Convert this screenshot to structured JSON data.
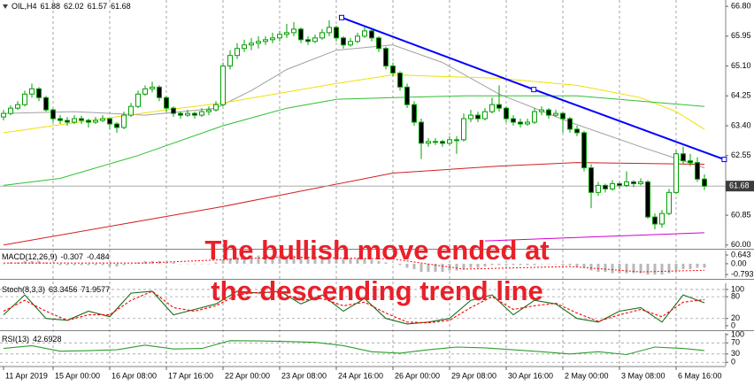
{
  "chart_data": [
    {
      "type": "candlestick",
      "title": "OIL,H4",
      "header_values": [
        61.88,
        62.02,
        61.57,
        61.68
      ],
      "categories": [
        "11 Apr 2019",
        null,
        null,
        null,
        null,
        null,
        null,
        "15 Apr 00:00",
        null,
        null,
        null,
        null,
        null,
        null,
        null,
        "16 Apr 08:00",
        null,
        null,
        null,
        null,
        null,
        null,
        null,
        "17 Apr 16:00",
        null,
        null,
        null,
        null,
        null,
        null,
        null,
        "22 Apr 00:00",
        null,
        null,
        null,
        null,
        null,
        null,
        null,
        "23 Apr 08:00",
        null,
        null,
        null,
        null,
        null,
        null,
        null,
        "24 Apr 16:00",
        null,
        null,
        null,
        null,
        null,
        null,
        null,
        "26 Apr 00:00",
        null,
        null,
        null,
        null,
        null,
        null,
        null,
        "29 Apr 08:00",
        null,
        null,
        null,
        null,
        null,
        null,
        null,
        "30 Apr 16:00",
        null,
        null,
        null,
        null,
        null,
        null,
        null,
        "2 May 00:00",
        null,
        null,
        null,
        null,
        null,
        null,
        null,
        "3 May 08:00",
        null,
        null,
        null,
        null,
        null,
        null,
        null,
        "6 May 16:00",
        null,
        null,
        null,
        null
      ],
      "ohlc": [
        [
          63.65,
          63.85,
          63.55,
          63.75
        ],
        [
          63.75,
          63.98,
          63.7,
          63.9
        ],
        [
          63.9,
          64.1,
          63.85,
          64.0
        ],
        [
          64.0,
          64.4,
          63.95,
          64.3
        ],
        [
          64.3,
          64.6,
          64.2,
          64.45
        ],
        [
          64.45,
          64.5,
          64.1,
          64.2
        ],
        [
          64.2,
          64.25,
          63.8,
          63.85
        ],
        [
          63.85,
          63.9,
          63.5,
          63.6
        ],
        [
          63.6,
          63.7,
          63.45,
          63.55
        ],
        [
          63.55,
          63.65,
          63.4,
          63.5
        ],
        [
          63.5,
          63.7,
          63.45,
          63.6
        ],
        [
          63.6,
          63.68,
          63.45,
          63.55
        ],
        [
          63.55,
          63.6,
          63.35,
          63.5
        ],
        [
          63.5,
          63.65,
          63.45,
          63.55
        ],
        [
          63.55,
          63.7,
          63.5,
          63.6
        ],
        [
          63.6,
          63.62,
          63.3,
          63.45
        ],
        [
          63.45,
          63.5,
          63.2,
          63.35
        ],
        [
          63.35,
          63.8,
          63.3,
          63.7
        ],
        [
          63.7,
          64.05,
          63.65,
          63.95
        ],
        [
          63.95,
          64.4,
          63.9,
          64.3
        ],
        [
          64.3,
          64.55,
          64.25,
          64.45
        ],
        [
          64.45,
          64.65,
          64.35,
          64.5
        ],
        [
          64.5,
          64.55,
          64.1,
          64.2
        ],
        [
          64.2,
          64.25,
          63.8,
          63.9
        ],
        [
          63.9,
          63.95,
          63.65,
          63.75
        ],
        [
          63.75,
          63.8,
          63.6,
          63.7
        ],
        [
          63.7,
          63.85,
          63.65,
          63.75
        ],
        [
          63.75,
          63.8,
          63.6,
          63.7
        ],
        [
          63.7,
          63.9,
          63.65,
          63.8
        ],
        [
          63.8,
          63.95,
          63.7,
          63.85
        ],
        [
          63.85,
          64.1,
          63.8,
          64.0
        ],
        [
          64.0,
          65.2,
          63.95,
          65.1
        ],
        [
          65.1,
          65.55,
          65.0,
          65.4
        ],
        [
          65.4,
          65.75,
          65.3,
          65.6
        ],
        [
          65.6,
          65.85,
          65.5,
          65.7
        ],
        [
          65.7,
          65.9,
          65.55,
          65.75
        ],
        [
          65.75,
          65.95,
          65.6,
          65.8
        ],
        [
          65.8,
          65.95,
          65.7,
          65.85
        ],
        [
          65.85,
          66.05,
          65.75,
          65.9
        ],
        [
          65.9,
          66.1,
          65.8,
          66.0
        ],
        [
          66.0,
          66.3,
          65.9,
          66.05
        ],
        [
          66.05,
          66.35,
          65.95,
          66.15
        ],
        [
          66.15,
          66.2,
          65.75,
          65.85
        ],
        [
          65.85,
          65.95,
          65.7,
          65.8
        ],
        [
          65.8,
          66.0,
          65.75,
          65.9
        ],
        [
          65.9,
          66.15,
          65.85,
          66.05
        ],
        [
          66.05,
          66.4,
          65.95,
          66.2
        ],
        [
          66.2,
          66.25,
          65.8,
          65.9
        ],
        [
          65.9,
          65.95,
          65.6,
          65.7
        ],
        [
          65.7,
          65.9,
          65.65,
          65.8
        ],
        [
          65.8,
          66.05,
          65.75,
          65.95
        ],
        [
          65.95,
          66.2,
          65.9,
          66.1
        ],
        [
          66.1,
          66.15,
          65.8,
          65.9
        ],
        [
          65.9,
          65.95,
          65.5,
          65.6
        ],
        [
          65.6,
          65.65,
          65.0,
          65.1
        ],
        [
          65.1,
          65.2,
          64.8,
          64.9
        ],
        [
          64.9,
          64.95,
          64.4,
          64.5
        ],
        [
          64.5,
          64.6,
          63.9,
          64.0
        ],
        [
          64.0,
          64.1,
          63.4,
          63.5
        ],
        [
          63.5,
          63.6,
          62.45,
          62.9
        ],
        [
          62.9,
          63.05,
          62.8,
          62.95
        ],
        [
          62.95,
          63.05,
          62.85,
          62.95
        ],
        [
          62.95,
          63.0,
          62.8,
          62.9
        ],
        [
          62.9,
          63.1,
          62.85,
          63.0
        ],
        [
          63.0,
          63.1,
          62.6,
          63.0
        ],
        [
          63.0,
          63.75,
          62.95,
          63.6
        ],
        [
          63.6,
          63.85,
          63.5,
          63.7
        ],
        [
          63.7,
          63.8,
          63.5,
          63.6
        ],
        [
          63.6,
          63.9,
          63.55,
          63.8
        ],
        [
          63.8,
          64.2,
          63.75,
          64.0
        ],
        [
          64.0,
          64.55,
          63.8,
          63.9
        ],
        [
          63.9,
          63.95,
          63.5,
          63.6
        ],
        [
          63.6,
          63.7,
          63.4,
          63.5
        ],
        [
          63.5,
          63.6,
          63.35,
          63.45
        ],
        [
          63.45,
          63.6,
          63.4,
          63.5
        ],
        [
          63.5,
          63.9,
          63.45,
          63.8
        ],
        [
          63.8,
          63.95,
          63.7,
          63.85
        ],
        [
          63.85,
          63.9,
          63.6,
          63.7
        ],
        [
          63.7,
          63.85,
          63.65,
          63.75
        ],
        [
          63.75,
          63.8,
          63.2,
          63.6
        ],
        [
          63.6,
          63.65,
          63.2,
          63.3
        ],
        [
          63.3,
          63.4,
          63.1,
          63.2
        ],
        [
          63.2,
          63.25,
          62.1,
          62.2
        ],
        [
          62.2,
          62.3,
          61.05,
          61.5
        ],
        [
          61.5,
          61.8,
          61.4,
          61.7
        ],
        [
          61.7,
          61.75,
          61.5,
          61.6
        ],
        [
          61.6,
          61.85,
          61.55,
          61.75
        ],
        [
          61.75,
          61.8,
          61.6,
          61.7
        ],
        [
          61.7,
          62.1,
          61.65,
          61.8
        ],
        [
          61.8,
          61.85,
          61.65,
          61.75
        ],
        [
          61.75,
          61.9,
          61.7,
          61.8
        ],
        [
          61.8,
          61.85,
          60.75,
          60.8
        ],
        [
          60.8,
          60.9,
          60.45,
          60.6
        ],
        [
          60.6,
          61.0,
          60.5,
          60.9
        ],
        [
          60.9,
          61.6,
          60.85,
          61.5
        ],
        [
          61.5,
          62.7,
          61.45,
          62.6
        ],
        [
          62.6,
          62.8,
          62.3,
          62.4
        ],
        [
          62.4,
          62.6,
          62.25,
          62.35
        ],
        [
          62.35,
          62.5,
          61.8,
          61.88
        ],
        [
          61.88,
          62.02,
          61.57,
          61.68
        ]
      ],
      "up_color": "#00a000",
      "down_color": "#000000",
      "ylim": [
        59.92,
        66.98
      ],
      "yticks": [
        {
          "value": 66.8,
          "label": "66.80"
        },
        65.95,
        {
          "value": 65.1,
          "label": "65.10"
        },
        64.25,
        {
          "value": 63.4,
          "label": "63.40"
        },
        62.55,
        60.85,
        {
          "value": 60.0,
          "label": "60.00"
        }
      ],
      "last_price": 61.68,
      "overlays": [
        {
          "color": "#a0a0a0",
          "x": [
            0,
            10,
            20,
            30,
            35,
            40,
            47,
            55,
            62,
            70,
            80,
            90,
            99
          ],
          "values": [
            63.75,
            63.8,
            63.7,
            63.9,
            64.4,
            65.0,
            65.55,
            65.7,
            65.2,
            64.3,
            63.5,
            62.8,
            62.2
          ]
        },
        {
          "color": "#f0e000",
          "x": [
            0,
            23,
            31,
            47,
            55,
            70,
            81,
            90,
            95,
            99
          ],
          "values": [
            63.2,
            63.85,
            64.05,
            64.6,
            64.85,
            64.75,
            64.55,
            64.2,
            63.8,
            63.3
          ]
        },
        {
          "color": "#30c030",
          "x": [
            0,
            8,
            19,
            31,
            40,
            47,
            55,
            65,
            81,
            90,
            99
          ],
          "values": [
            61.7,
            61.9,
            62.55,
            63.4,
            63.9,
            64.15,
            64.2,
            64.25,
            64.25,
            64.1,
            63.95
          ]
        },
        {
          "color": "#d02020",
          "x": [
            0,
            31,
            55,
            70,
            81,
            99
          ],
          "values": [
            60.0,
            61.1,
            62.05,
            62.25,
            62.35,
            62.3
          ]
        },
        {
          "color": "#d000d0",
          "x": [
            68,
            99
          ],
          "values": [
            60.12,
            60.35
          ]
        }
      ],
      "trendline": {
        "color": "#0000ff",
        "x": [
          47.75,
          74.9,
          101.8
        ],
        "values": [
          66.48,
          64.43,
          62.44
        ]
      },
      "annotation": [
        "The bullish move ended at",
        "the descending trend line"
      ],
      "annotation_color": "#e8202a"
    },
    {
      "type": "bar",
      "title": "MACD(12,26,9)",
      "header_values": [
        -0.307,
        -0.484
      ],
      "color": "#b8b8b8",
      "values": [
        0.0,
        0.1,
        0.1,
        0.2,
        0.2,
        0.2,
        0.1,
        0.0,
        -0.1,
        -0.1,
        -0.1,
        -0.1,
        -0.1,
        -0.1,
        -0.1,
        -0.2,
        -0.2,
        -0.1,
        0.0,
        0.1,
        0.2,
        0.2,
        0.2,
        0.1,
        0.1,
        0.0,
        0.0,
        0.0,
        0.0,
        0.0,
        0.1,
        0.3,
        0.4,
        0.5,
        0.6,
        0.6,
        0.6,
        0.6,
        0.6,
        0.6,
        0.6,
        0.6,
        0.5,
        0.5,
        0.5,
        0.5,
        0.5,
        0.4,
        0.4,
        0.4,
        0.4,
        0.4,
        0.3,
        0.2,
        0.1,
        0.0,
        -0.1,
        -0.3,
        -0.4,
        -0.6,
        -0.6,
        -0.6,
        -0.6,
        -0.5,
        -0.5,
        -0.4,
        -0.3,
        -0.3,
        -0.2,
        -0.1,
        -0.1,
        -0.1,
        -0.1,
        -0.1,
        -0.1,
        -0.1,
        0.0,
        0.0,
        0.0,
        -0.1,
        -0.1,
        -0.2,
        -0.3,
        -0.5,
        -0.6,
        -0.6,
        -0.7,
        -0.7,
        -0.7,
        -0.7,
        -0.7,
        -0.8,
        -0.8,
        -0.8,
        -0.7,
        -0.5,
        -0.4,
        -0.4,
        -0.3,
        -0.3
      ],
      "signal": {
        "color": "#ff0000",
        "x": [
          0,
          20,
          40,
          55,
          65,
          80,
          90,
          99
        ],
        "values": [
          0.05,
          0.05,
          0.5,
          0.35,
          -0.4,
          -0.2,
          -0.6,
          -0.484
        ]
      },
      "ylim": [
        -1.05,
        0.97
      ],
      "yticks": [
        0.643,
        {
          "value": 0,
          "label": "0.00"
        },
        -0.793
      ],
      "grid": false
    },
    {
      "type": "line",
      "title": "Stoch(8,3,3)",
      "header_values": [
        63.3456,
        71.9577
      ],
      "x": [
        0,
        3,
        6,
        9,
        12,
        15,
        18,
        21,
        24,
        27,
        30,
        33,
        36,
        39,
        42,
        45,
        48,
        51,
        54,
        57,
        60,
        63,
        66,
        69,
        72,
        75,
        78,
        81,
        84,
        87,
        90,
        93,
        96,
        99
      ],
      "series": [
        {
          "color": "#1a6e1a",
          "values": [
            30,
            85,
            20,
            15,
            40,
            25,
            90,
            95,
            30,
            45,
            60,
            95,
            90,
            95,
            60,
            85,
            40,
            75,
            20,
            5,
            10,
            20,
            70,
            85,
            30,
            70,
            60,
            20,
            10,
            40,
            50,
            10,
            85,
            63.3456
          ]
        },
        {
          "color": "#ff0000",
          "values": [
            40,
            70,
            40,
            15,
            30,
            30,
            70,
            95,
            50,
            40,
            55,
            85,
            92,
            92,
            70,
            75,
            55,
            65,
            35,
            10,
            8,
            15,
            50,
            80,
            45,
            55,
            62,
            35,
            12,
            30,
            45,
            25,
            65,
            71.9577
          ]
        }
      ],
      "ylim": [
        -10,
        117
      ],
      "yticks": [
        100,
        80,
        20,
        0
      ],
      "grid": true
    },
    {
      "type": "line",
      "title": "RSI(13)",
      "header_values": [
        42.6928
      ],
      "x": [
        0,
        4,
        8,
        12,
        16,
        20,
        24,
        28,
        32,
        36,
        40,
        44,
        48,
        52,
        56,
        60,
        64,
        68,
        72,
        76,
        80,
        84,
        88,
        92,
        96,
        99
      ],
      "series": [
        {
          "color": "#2e9e2e",
          "values": [
            50,
            60,
            40,
            42,
            45,
            62,
            48,
            50,
            78,
            77,
            75,
            72,
            60,
            38,
            33,
            45,
            55,
            52,
            45,
            38,
            30,
            38,
            28,
            55,
            50,
            42.6928
          ]
        }
      ],
      "ylim": [
        -12,
        106
      ],
      "yticks": [
        100,
        70,
        30,
        0
      ],
      "grid": true
    }
  ]
}
